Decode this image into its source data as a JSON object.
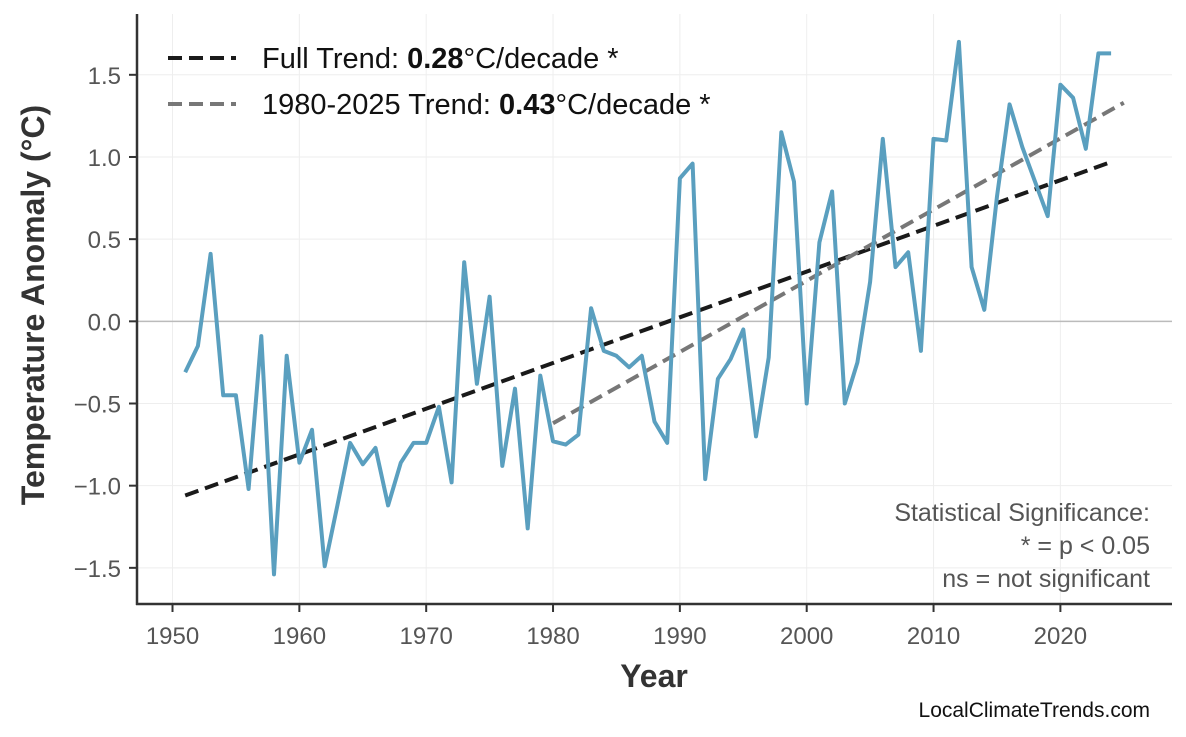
{
  "chart_data": {
    "type": "line",
    "xlabel": "Year",
    "ylabel": "Temperature Anomaly (°C)",
    "xlim": [
      1947.2,
      2028.8
    ],
    "ylim": [
      -1.72,
      1.87
    ],
    "x_ticks": [
      1950,
      1960,
      1970,
      1980,
      1990,
      2000,
      2010,
      2020
    ],
    "x_tick_labels": [
      "1950",
      "1960",
      "1970",
      "1980",
      "1990",
      "2000",
      "2010",
      "2020"
    ],
    "y_ticks": [
      -1.5,
      -1.0,
      -0.5,
      0.0,
      0.5,
      1.0,
      1.5
    ],
    "y_tick_labels": [
      "−1.5",
      "−1.0",
      "−0.5",
      "0.0",
      "0.5",
      "1.0",
      "1.5"
    ],
    "grid": true,
    "zero_line": true,
    "legend_position": "top-left",
    "colors": {
      "series": "#5a9fbf",
      "full_trend": "#1a1a1a",
      "recent_trend": "#777777",
      "axis": "#333333",
      "tick_label": "#555555",
      "grid": "#eeeeee",
      "zero_line": "#bbbbbb"
    },
    "series": [
      {
        "x": [
          1951,
          1952,
          1953,
          1954,
          1955,
          1956,
          1957,
          1958,
          1959,
          1960,
          1961,
          1962,
          1963,
          1964,
          1965,
          1966,
          1967,
          1968,
          1969,
          1970,
          1971,
          1972,
          1973,
          1974,
          1975,
          1976,
          1977,
          1978,
          1979,
          1980,
          1981,
          1982,
          1983,
          1984,
          1985,
          1986,
          1987,
          1988,
          1989,
          1990,
          1991,
          1992,
          1993,
          1994,
          1995,
          1996,
          1997,
          1998,
          1999,
          2000,
          2001,
          2002,
          2003,
          2004,
          2005,
          2006,
          2007,
          2008,
          2009,
          2010,
          2011,
          2012,
          2013,
          2014,
          2015,
          2016,
          2017,
          2018,
          2019,
          2020,
          2021,
          2022,
          2023,
          2024
        ],
        "values": [
          -0.31,
          -0.15,
          0.41,
          -0.45,
          -0.45,
          -1.02,
          -0.09,
          -1.54,
          -0.21,
          -0.86,
          -0.66,
          -1.49,
          -1.12,
          -0.74,
          -0.87,
          -0.77,
          -1.12,
          -0.86,
          -0.74,
          -0.74,
          -0.52,
          -0.98,
          0.36,
          -0.38,
          0.15,
          -0.88,
          -0.41,
          -1.26,
          -0.33,
          -0.73,
          -0.75,
          -0.69,
          0.08,
          -0.18,
          -0.21,
          -0.28,
          -0.21,
          -0.61,
          -0.74,
          0.87,
          0.96,
          -0.96,
          -0.35,
          -0.23,
          -0.05,
          -0.7,
          -0.22,
          1.15,
          0.85,
          -0.5,
          0.48,
          0.79,
          -0.5,
          -0.25,
          0.24,
          1.11,
          0.33,
          0.42,
          -0.18,
          1.11,
          1.1,
          1.7,
          0.33,
          0.07,
          0.76,
          1.32,
          1.06,
          0.85,
          0.64,
          1.44,
          1.36,
          1.05,
          1.63,
          1.63
        ]
      }
    ],
    "trends": [
      {
        "key": "full",
        "label_prefix": "Full Trend: ",
        "rate": "0.28",
        "label_suffix": "°C/decade *",
        "x": [
          1951,
          2024
        ],
        "y": [
          -1.06,
          0.97
        ]
      },
      {
        "key": "recent",
        "label_prefix": "1980-2025 Trend: ",
        "rate": "0.43",
        "label_suffix": "°C/decade *",
        "x": [
          1980,
          2025
        ],
        "y": [
          -0.62,
          1.33
        ]
      }
    ],
    "annotation": {
      "lines": [
        "Statistical Significance:",
        "* = p < 0.05",
        "ns = not significant"
      ]
    },
    "credit": "LocalClimateTrends.com"
  }
}
